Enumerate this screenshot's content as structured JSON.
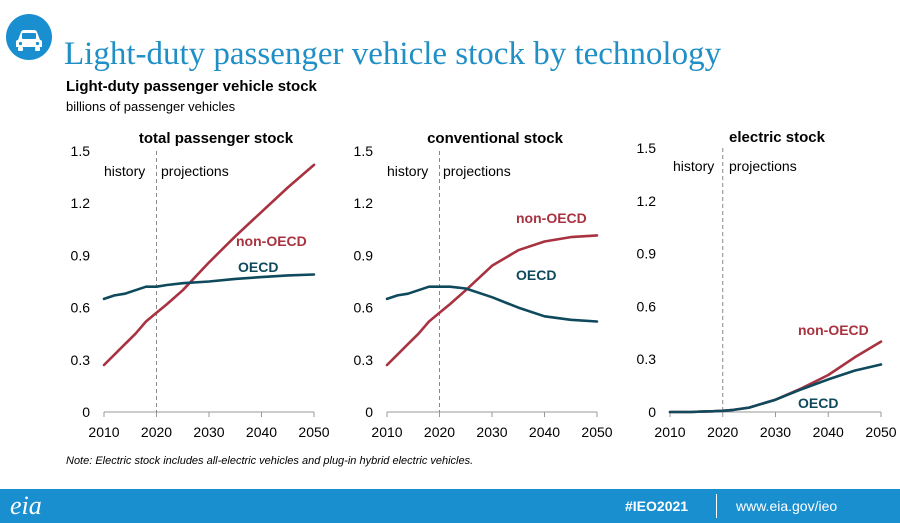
{
  "header": {
    "icon": "car-icon",
    "slide_title": "Light-duty passenger vehicle stock by technology",
    "chart_title": "Light-duty passenger vehicle stock",
    "chart_subtitle": "billions of passenger vehicles"
  },
  "note": "Note:  Electric stock includes all-electric vehicles and plug-in hybrid electric vehicles.",
  "footer": {
    "logo": "eia",
    "hashtag": "#IEO2021",
    "url": "www.eia.gov/ieo"
  },
  "colors": {
    "brand": "#1a8fd0",
    "title": "#1f8fc6",
    "non_oecd": "#a83240",
    "oecd": "#0e4a5c"
  },
  "chart_data": [
    {
      "type": "line",
      "title": "total passenger stock",
      "history_label": "history",
      "projections_label": "projections",
      "history_end": 2020,
      "xlim": [
        2010,
        2050
      ],
      "ylim": [
        0,
        1.5
      ],
      "xticks": [
        "2010",
        "2020",
        "2030",
        "2040",
        "2050"
      ],
      "yticks": [
        "0",
        "0.3",
        "0.6",
        "0.9",
        "1.2",
        "1.5"
      ],
      "x": [
        2010,
        2012,
        2014,
        2016,
        2018,
        2020,
        2022,
        2025,
        2030,
        2035,
        2040,
        2045,
        2050
      ],
      "series": [
        {
          "name": "non-OECD",
          "color": "#a83240",
          "values": [
            0.27,
            0.33,
            0.39,
            0.45,
            0.52,
            0.57,
            0.62,
            0.7,
            0.86,
            1.01,
            1.15,
            1.29,
            1.42
          ]
        },
        {
          "name": "OECD",
          "color": "#0e4a5c",
          "values": [
            0.65,
            0.67,
            0.68,
            0.7,
            0.72,
            0.72,
            0.73,
            0.74,
            0.75,
            0.765,
            0.775,
            0.785,
            0.79
          ]
        }
      ]
    },
    {
      "type": "line",
      "title": "conventional stock",
      "history_label": "history",
      "projections_label": "projections",
      "history_end": 2020,
      "xlim": [
        2010,
        2050
      ],
      "ylim": [
        0,
        1.5
      ],
      "xticks": [
        "2010",
        "2020",
        "2030",
        "2040",
        "2050"
      ],
      "yticks": [
        "0",
        "0.3",
        "0.6",
        "0.9",
        "1.2",
        "1.5"
      ],
      "x": [
        2010,
        2012,
        2014,
        2016,
        2018,
        2020,
        2022,
        2025,
        2030,
        2035,
        2040,
        2045,
        2050
      ],
      "series": [
        {
          "name": "non-OECD",
          "color": "#a83240",
          "values": [
            0.27,
            0.33,
            0.39,
            0.45,
            0.52,
            0.57,
            0.62,
            0.7,
            0.84,
            0.93,
            0.98,
            1.005,
            1.015
          ]
        },
        {
          "name": "OECD",
          "color": "#0e4a5c",
          "values": [
            0.65,
            0.67,
            0.68,
            0.7,
            0.72,
            0.72,
            0.72,
            0.71,
            0.66,
            0.6,
            0.55,
            0.53,
            0.52
          ]
        }
      ]
    },
    {
      "type": "line",
      "title": "electric stock",
      "history_label": "history",
      "projections_label": "projections",
      "history_end": 2020,
      "xlim": [
        2010,
        2050
      ],
      "ylim": [
        0,
        1.5
      ],
      "xticks": [
        "2010",
        "2020",
        "2030",
        "2040",
        "2050"
      ],
      "yticks": [
        "0",
        "0.3",
        "0.6",
        "0.9",
        "1.2",
        "1.5"
      ],
      "x": [
        2010,
        2012,
        2014,
        2016,
        2018,
        2020,
        2022,
        2025,
        2030,
        2035,
        2040,
        2045,
        2050
      ],
      "series": [
        {
          "name": "non-OECD",
          "color": "#a83240",
          "values": [
            0.0,
            0.0,
            0.0,
            0.002,
            0.004,
            0.007,
            0.012,
            0.025,
            0.07,
            0.135,
            0.21,
            0.31,
            0.4
          ]
        },
        {
          "name": "OECD",
          "color": "#0e4a5c",
          "values": [
            0.0,
            0.0,
            0.0,
            0.002,
            0.004,
            0.007,
            0.012,
            0.025,
            0.07,
            0.13,
            0.185,
            0.235,
            0.27
          ]
        }
      ]
    }
  ]
}
